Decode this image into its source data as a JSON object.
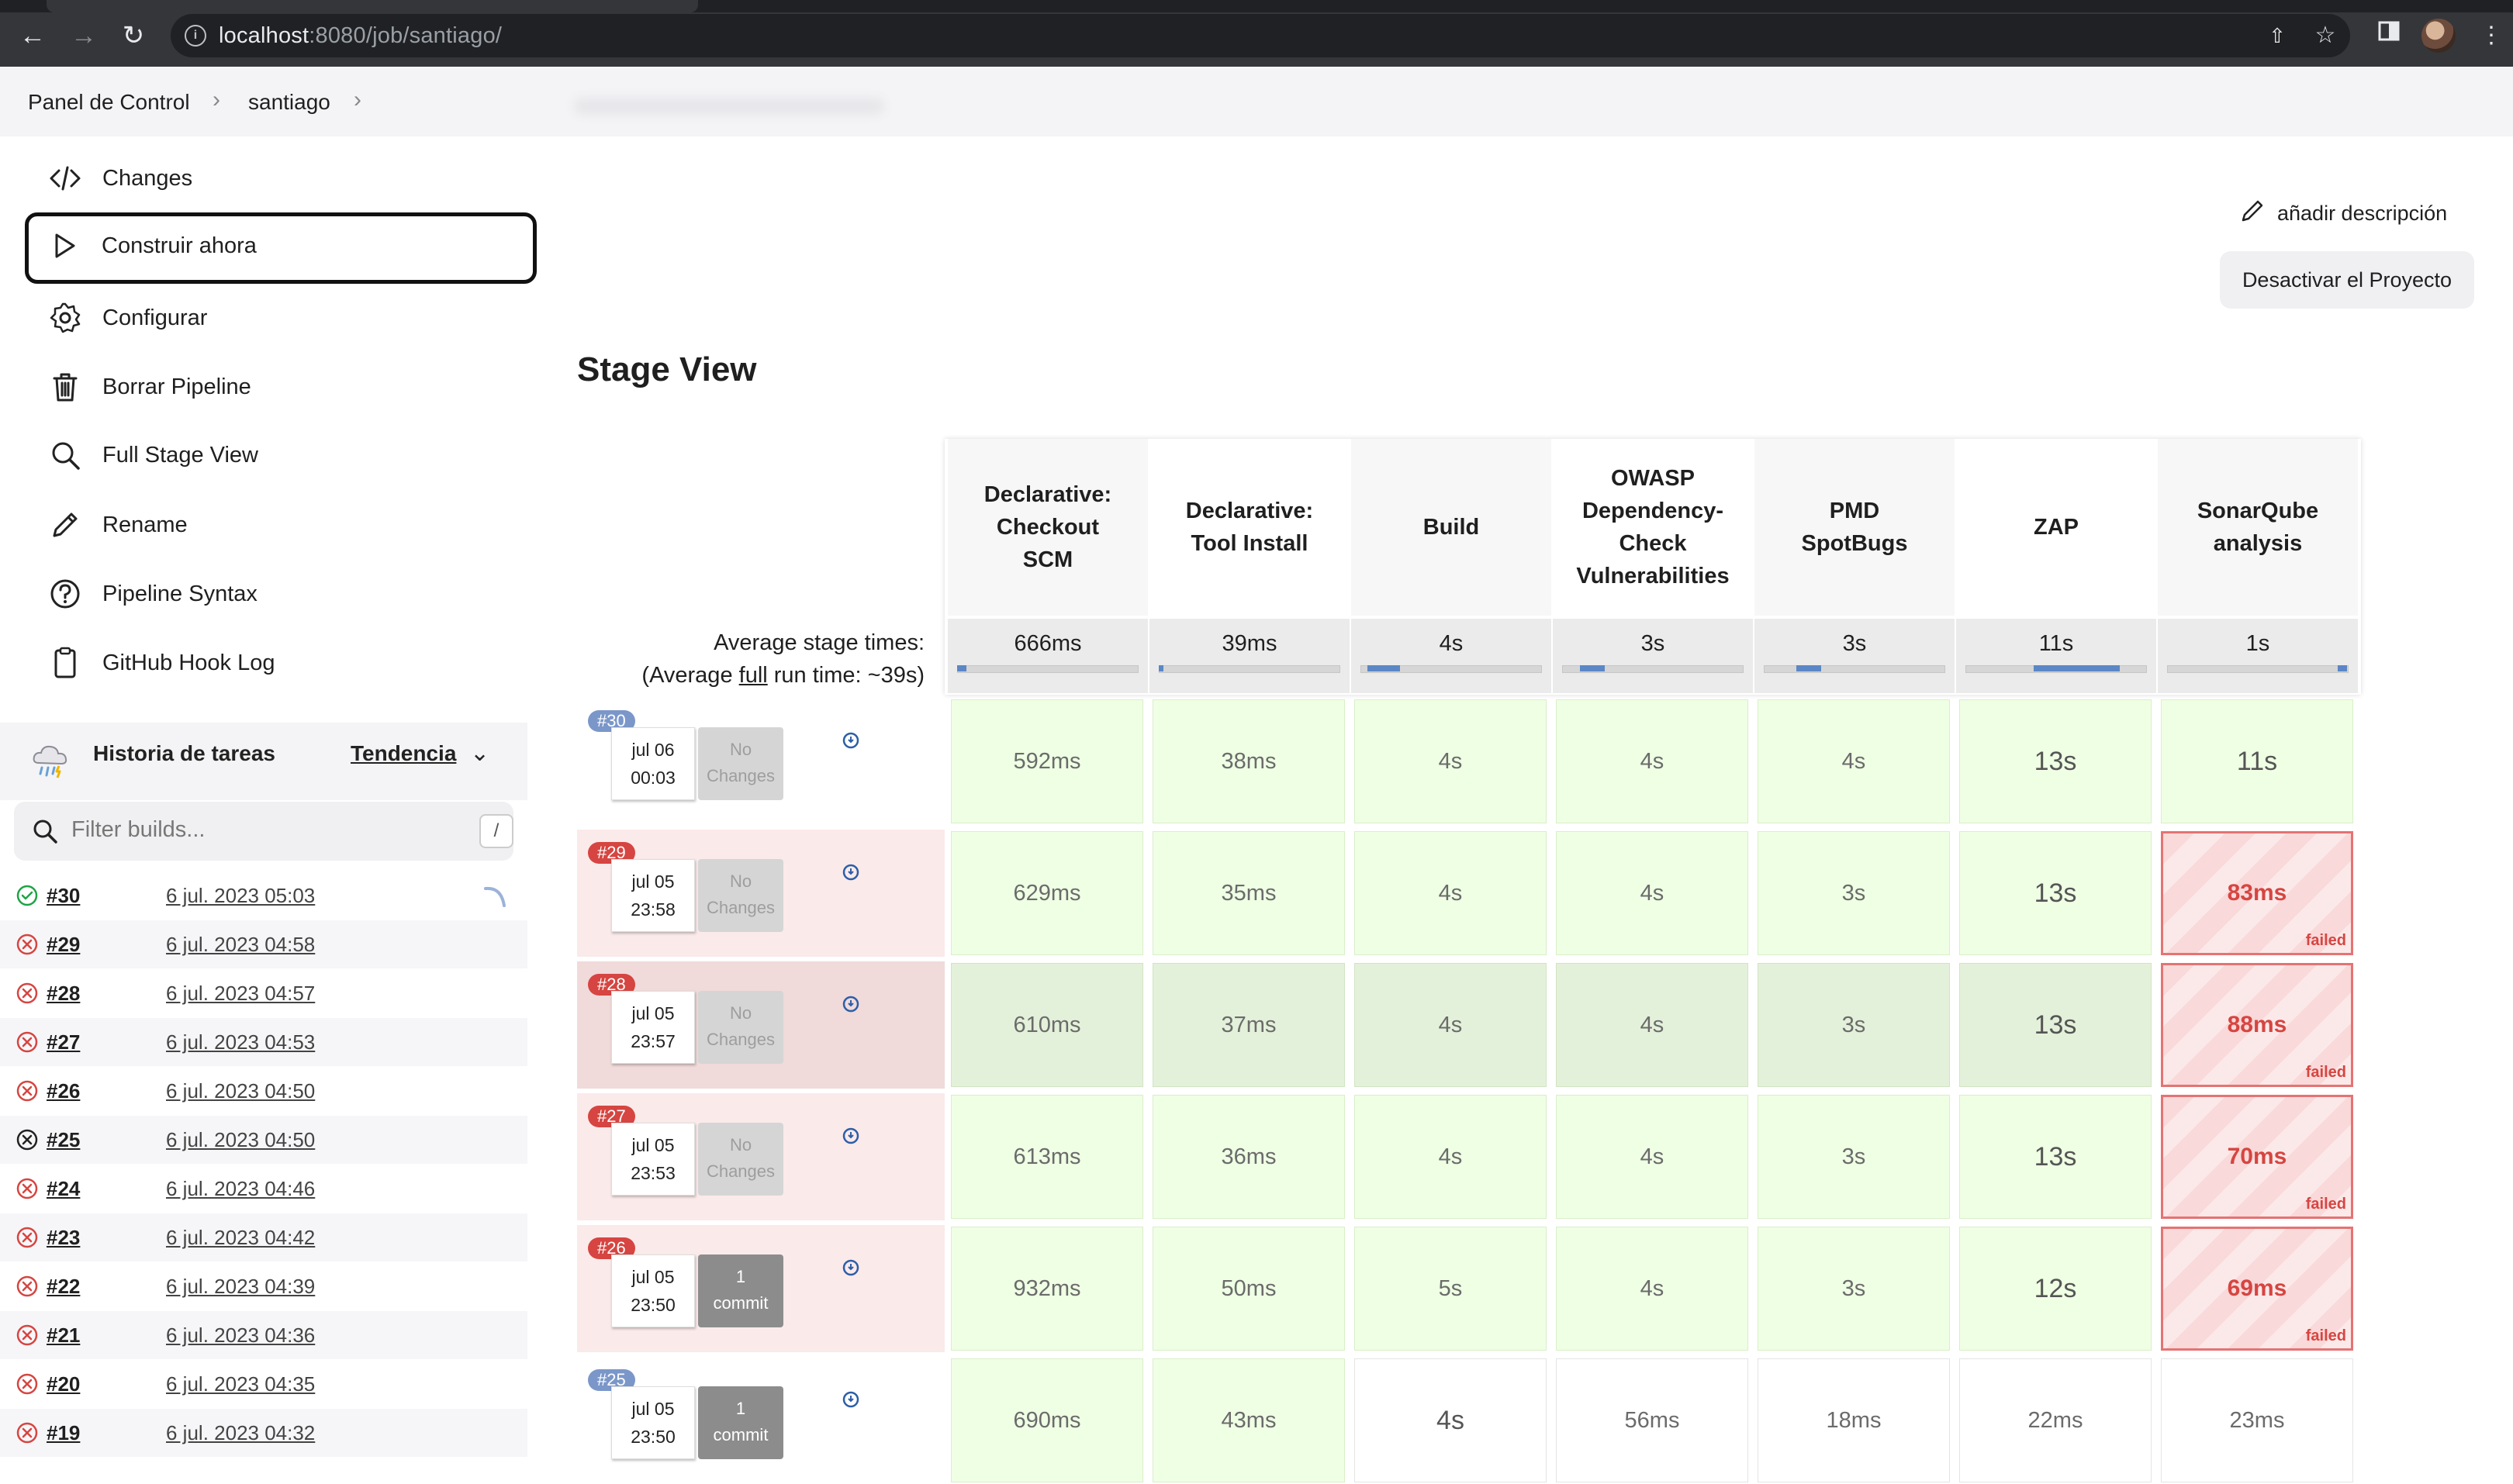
{
  "browser": {
    "url_host": "localhost",
    "url_rest": ":8080/job/santiago/"
  },
  "breadcrumb": {
    "items": [
      "Panel de Control",
      "santiago"
    ]
  },
  "sidebar": {
    "items": [
      {
        "label": "Changes",
        "icon": "code-icon"
      },
      {
        "label": "Construir ahora",
        "icon": "play-icon"
      },
      {
        "label": "Configurar",
        "icon": "gear-icon"
      },
      {
        "label": "Borrar Pipeline",
        "icon": "trash-icon"
      },
      {
        "label": "Full Stage View",
        "icon": "search-icon"
      },
      {
        "label": "Rename",
        "icon": "pencil-icon"
      },
      {
        "label": "Pipeline Syntax",
        "icon": "help-icon"
      },
      {
        "label": "GitHub Hook Log",
        "icon": "clipboard-icon"
      }
    ]
  },
  "history": {
    "title": "Historia de tareas",
    "trend": "Tendencia",
    "filter_placeholder": "Filter builds...",
    "filter_shortcut": "/",
    "builds": [
      {
        "num": "#30",
        "date": "6 jul. 2023 05:03",
        "status": "success"
      },
      {
        "num": "#29",
        "date": "6 jul. 2023 04:58",
        "status": "failed"
      },
      {
        "num": "#28",
        "date": "6 jul. 2023 04:57",
        "status": "failed"
      },
      {
        "num": "#27",
        "date": "6 jul. 2023 04:53",
        "status": "failed"
      },
      {
        "num": "#26",
        "date": "6 jul. 2023 04:50",
        "status": "failed"
      },
      {
        "num": "#25",
        "date": "6 jul. 2023 04:50",
        "status": "aborted"
      },
      {
        "num": "#24",
        "date": "6 jul. 2023 04:46",
        "status": "failed"
      },
      {
        "num": "#23",
        "date": "6 jul. 2023 04:42",
        "status": "failed"
      },
      {
        "num": "#22",
        "date": "6 jul. 2023 04:39",
        "status": "failed"
      },
      {
        "num": "#21",
        "date": "6 jul. 2023 04:36",
        "status": "failed"
      },
      {
        "num": "#20",
        "date": "6 jul. 2023 04:35",
        "status": "failed"
      },
      {
        "num": "#19",
        "date": "6 jul. 2023 04:32",
        "status": "failed"
      }
    ]
  },
  "main": {
    "add_description": "añadir descripción",
    "deactivate_button": "Desactivar el Proyecto",
    "stage_view_title": "Stage View",
    "avg_label_1": "Average stage times:",
    "avg_label_2a": "(Average ",
    "avg_label_2b": "full",
    "avg_label_2c": " run time: ~39s)"
  },
  "stages": [
    {
      "name": "Declarative: Checkout SCM",
      "lines": [
        "Declarative:",
        "Checkout",
        "SCM"
      ],
      "avg": "666ms",
      "avg_fraction": 0.05
    },
    {
      "name": "Declarative: Tool Install",
      "lines": [
        "Declarative:",
        "Tool Install"
      ],
      "avg": "39ms",
      "avg_fraction": 0.01
    },
    {
      "name": "Build",
      "lines": [
        "Build"
      ],
      "avg": "4s",
      "avg_fraction": 0.18
    },
    {
      "name": "OWASP Dependency-Check Vulnerabilities",
      "lines": [
        "OWASP",
        "Dependency-",
        "Check",
        "Vulnerabilities"
      ],
      "avg": "3s",
      "avg_fraction": 0.14
    },
    {
      "name": "PMD SpotBugs",
      "lines": [
        "PMD",
        "SpotBugs"
      ],
      "avg": "3s",
      "avg_fraction": 0.14
    },
    {
      "name": "ZAP",
      "lines": [
        "ZAP"
      ],
      "avg": "11s",
      "avg_fraction": 0.48
    },
    {
      "name": "SonarQube analysis",
      "lines": [
        "SonarQube",
        "analysis"
      ],
      "avg": "1s",
      "avg_fraction": 0.05
    }
  ],
  "runs": [
    {
      "badge": "#30",
      "date": "jul 06",
      "time": "00:03",
      "changes": [
        "No",
        "Changes"
      ],
      "changes_type": "none",
      "row": "ok",
      "cells": [
        "592ms",
        "38ms",
        "4s",
        "4s",
        "4s",
        "13s",
        "11s"
      ],
      "states": [
        "ok",
        "ok",
        "ok",
        "ok",
        "ok",
        "big",
        "big"
      ]
    },
    {
      "badge": "#29",
      "date": "jul 05",
      "time": "23:58",
      "changes": [
        "No",
        "Changes"
      ],
      "changes_type": "none",
      "row": "fail",
      "cells": [
        "629ms",
        "35ms",
        "4s",
        "4s",
        "3s",
        "13s",
        "83ms"
      ],
      "states": [
        "ok",
        "ok",
        "ok",
        "ok",
        "ok",
        "big",
        "fail"
      ]
    },
    {
      "badge": "#28",
      "date": "jul 05",
      "time": "23:57",
      "changes": [
        "No",
        "Changes"
      ],
      "changes_type": "none",
      "row": "faildark",
      "cells": [
        "610ms",
        "37ms",
        "4s",
        "4s",
        "3s",
        "13s",
        "88ms"
      ],
      "states": [
        "okdark",
        "okdark",
        "okdark",
        "okdark",
        "okdark",
        "bigdark",
        "fail"
      ]
    },
    {
      "badge": "#27",
      "date": "jul 05",
      "time": "23:53",
      "changes": [
        "No",
        "Changes"
      ],
      "changes_type": "none",
      "row": "fail",
      "cells": [
        "613ms",
        "36ms",
        "4s",
        "4s",
        "3s",
        "13s",
        "70ms"
      ],
      "states": [
        "ok",
        "ok",
        "ok",
        "ok",
        "ok",
        "big",
        "fail"
      ]
    },
    {
      "badge": "#26",
      "date": "jul 05",
      "time": "23:50",
      "changes": [
        "1",
        "commit"
      ],
      "changes_type": "commit",
      "row": "fail",
      "cells": [
        "932ms",
        "50ms",
        "5s",
        "4s",
        "3s",
        "12s",
        "69ms"
      ],
      "states": [
        "ok",
        "ok",
        "ok",
        "ok",
        "ok",
        "big",
        "fail"
      ]
    },
    {
      "badge": "#25",
      "date": "jul 05",
      "time": "23:50",
      "changes": [
        "1",
        "commit"
      ],
      "changes_type": "commit",
      "row": "ok",
      "cells": [
        "690ms",
        "43ms",
        "4s",
        "56ms",
        "18ms",
        "22ms",
        "23ms"
      ],
      "states": [
        "ok",
        "ok",
        "plainbig",
        "plain",
        "plain",
        "plain",
        "plain"
      ]
    }
  ],
  "failed_label": "failed",
  "colors": {
    "badge_ok": "#7b97c9",
    "badge_fail": "#d64541",
    "fail_row": "#fbeaea",
    "fail_row_dark": "#f0dada"
  }
}
